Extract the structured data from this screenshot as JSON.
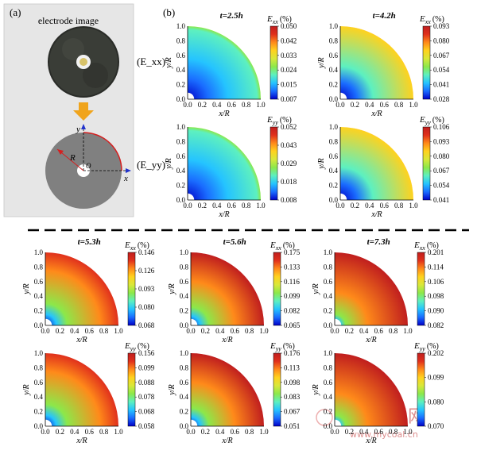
{
  "panel_a": {
    "label": "(a)",
    "photo_caption": "electrode image",
    "axis_x": "x",
    "axis_y": "y",
    "radius": "R",
    "origin": "O"
  },
  "panel_b": {
    "label": "(b)"
  },
  "row_labels": [
    "(E_xx)",
    "(E_yy)"
  ],
  "axis_labels": {
    "x": "x/R",
    "y": "y/R"
  },
  "axis_ticks": [
    "0.0",
    "0.2",
    "0.4",
    "0.6",
    "0.8",
    "1.0"
  ],
  "colorbar_unit": "(%)",
  "colormap": [
    "#0000c8",
    "#1a6cff",
    "#25c4ff",
    "#5df0c0",
    "#8ce84a",
    "#d8e83a",
    "#ffd21e",
    "#ff8a1a",
    "#e0301c",
    "#c01e1e"
  ],
  "plots": [
    {
      "time": "t=2.5h",
      "component": "xx",
      "ticks": [
        "0.050",
        "0.042",
        "0.033",
        "0.024",
        "0.015",
        "0.007"
      ],
      "inner": 0.0,
      "outer": 0.45,
      "r1": 0.55,
      "r2": 0.95
    },
    {
      "time": "t=4.2h",
      "component": "xx",
      "ticks": [
        "0.093",
        "0.080",
        "0.067",
        "0.054",
        "0.041",
        "0.028"
      ],
      "inner": 0.0,
      "outer": 0.82,
      "r1": 0.45,
      "r2": 1.0
    },
    {
      "time": "",
      "component": "yy",
      "ticks": [
        "0.052",
        "0.043",
        "0.029",
        "0.018",
        "0.008"
      ],
      "inner": 0.0,
      "outer": 0.42,
      "r1": 0.55,
      "r2": 0.95
    },
    {
      "time": "",
      "component": "yy",
      "ticks": [
        "0.106",
        "0.093",
        "0.080",
        "0.067",
        "0.054",
        "0.041"
      ],
      "inner": 0.0,
      "outer": 0.85,
      "r1": 0.45,
      "r2": 1.0
    },
    {
      "time": "t=5.3h",
      "component": "xx",
      "ticks": [
        "0.146",
        "0.126",
        "0.093",
        "0.080",
        "0.068"
      ],
      "inner": 0.0,
      "outer": 0.95,
      "r1": 0.3,
      "r2": 0.75
    },
    {
      "time": "t=5.6h",
      "component": "xx",
      "ticks": [
        "0.175",
        "0.133",
        "0.116",
        "0.099",
        "0.082",
        "0.065"
      ],
      "inner": 0.0,
      "outer": 1.0,
      "r1": 0.25,
      "r2": 0.6
    },
    {
      "time": "t=7.3h",
      "component": "xx",
      "ticks": [
        "0.201",
        "0.114",
        "0.106",
        "0.098",
        "0.090",
        "0.082"
      ],
      "inner": 0.0,
      "outer": 1.0,
      "r1": 0.15,
      "r2": 0.45
    },
    {
      "time": "",
      "component": "yy",
      "ticks": [
        "0.156",
        "0.099",
        "0.088",
        "0.078",
        "0.068",
        "0.058"
      ],
      "inner": 0.0,
      "outer": 0.95,
      "r1": 0.3,
      "r2": 0.75
    },
    {
      "time": "",
      "component": "yy",
      "ticks": [
        "0.176",
        "0.113",
        "0.098",
        "0.083",
        "0.067",
        "0.051"
      ],
      "inner": 0.0,
      "outer": 1.0,
      "r1": 0.25,
      "r2": 0.6
    },
    {
      "time": "",
      "component": "yy",
      "ticks": [
        "0.202",
        "0.099",
        "0.080",
        "0.070"
      ],
      "inner": 0.0,
      "outer": 1.0,
      "r1": 0.15,
      "r2": 0.45
    }
  ],
  "watermark": {
    "text_cn": "我的煤炭网",
    "url": "www.mycoal.cn"
  }
}
